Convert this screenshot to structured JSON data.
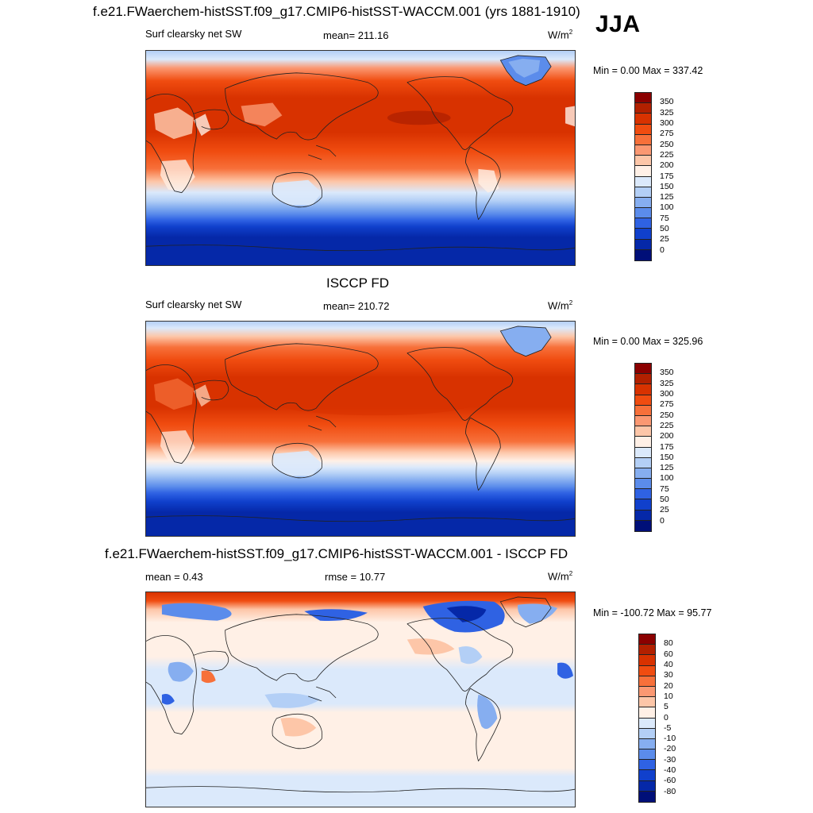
{
  "figure": {
    "title": "f.e21.FWaerchem-histSST.f09_g17.CMIP6-histSST-WACCM.001 (yrs 1881-1910)",
    "season": "JJA"
  },
  "panels": [
    {
      "heading": "",
      "left_label": "Surf clearsky net SW",
      "center_label": "mean= 211.16",
      "units_base": "W/m",
      "units_exp": "2",
      "minmax": "Min =   0.00 Max = 337.42"
    },
    {
      "heading": "ISCCP FD",
      "left_label": "Surf clearsky net SW",
      "center_label": "mean= 210.72",
      "units_base": "W/m",
      "units_exp": "2",
      "minmax": "Min =   0.00 Max = 325.96"
    },
    {
      "heading": "f.e21.FWaerchem-histSST.f09_g17.CMIP6-histSST-WACCM.001 - ISCCP FD",
      "left_label": "mean =   0.43",
      "center_label": "rmse =  10.77",
      "units_base": "W/m",
      "units_exp": "2",
      "minmax": "Min = -100.72 Max =  95.77"
    }
  ],
  "colorbars": {
    "abs": {
      "labels": [
        "350",
        "325",
        "300",
        "275",
        "250",
        "225",
        "200",
        "175",
        "150",
        "125",
        "100",
        "75",
        "50",
        "25",
        "0"
      ],
      "colors": [
        "#8b0000",
        "#b22000",
        "#d83200",
        "#f04c10",
        "#f7703a",
        "#fb9872",
        "#fdc6a8",
        "#fff0e6",
        "#dbe9fb",
        "#b3cff6",
        "#86aef0",
        "#5b8ceb",
        "#2f62e3",
        "#1040cc",
        "#0528a8",
        "#000f78"
      ]
    },
    "diff": {
      "labels": [
        "80",
        "60",
        "40",
        "30",
        "20",
        "10",
        "5",
        "0",
        "-5",
        "-10",
        "-20",
        "-30",
        "-40",
        "-60",
        "-80"
      ],
      "colors": [
        "#8b0000",
        "#b22000",
        "#d83200",
        "#f04c10",
        "#f7703a",
        "#fb9872",
        "#fdc6a8",
        "#fff0e6",
        "#dbe9fb",
        "#b3cff6",
        "#86aef0",
        "#5b8ceb",
        "#2f62e3",
        "#1040cc",
        "#0528a8",
        "#000f78"
      ]
    }
  }
}
